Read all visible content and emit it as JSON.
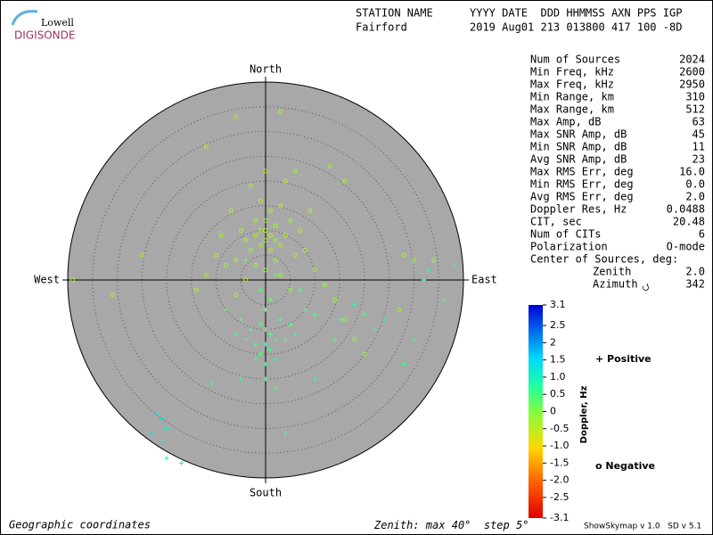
{
  "header": {
    "station_label": "STATION NAME",
    "fields_label": "YYYY DATE  DDD HHMMSS AXN PPS IGP",
    "station": "Fairford",
    "fields": "2019 Aug01 213 013800 417 100 -8D"
  },
  "logo": {
    "top": "Lowell",
    "bottom": "DIGISONDE"
  },
  "stats": {
    "rows": [
      [
        "Num of Sources",
        "2024"
      ],
      [
        "Min Freq, kHz",
        "2600"
      ],
      [
        "Max Freq, kHz",
        "2950"
      ],
      [
        "Min Range, km",
        "310"
      ],
      [
        "Max Range, km",
        "512"
      ],
      [
        "Max Amp, dB",
        "63"
      ],
      [
        "Max SNR Amp, dB",
        "45"
      ],
      [
        "Min SNR Amp, dB",
        "11"
      ],
      [
        "Avg SNR Amp, dB",
        "23"
      ],
      [
        "Max RMS Err, deg",
        "16.0"
      ],
      [
        "Min RMS Err, deg",
        "0.0"
      ],
      [
        "Avg RMS Err, deg",
        "2.0"
      ],
      [
        "Doppler Res, Hz",
        "0.0488"
      ],
      [
        "CIT, sec",
        "20.48"
      ],
      [
        "Num of CITs",
        "6"
      ],
      [
        "Polarization",
        "O-mode"
      ]
    ],
    "center_title": "Center of Sources, deg:",
    "center_rows": [
      [
        "Zenith",
        "2.0"
      ],
      [
        "Azimuth",
        "342"
      ]
    ]
  },
  "footer": {
    "left": "Geographic coordinates",
    "version": "ShowSkymap v 1.0   SD v 5.1"
  },
  "chart_data": {
    "type": "skymap",
    "directions": {
      "north": "North",
      "south": "South",
      "east": "East",
      "west": "West"
    },
    "zenith_label": "Zenith: max",
    "step_label": "step",
    "zenith_max": {
      "value": 40,
      "label": "40°"
    },
    "zenith_step": {
      "value": 5,
      "label": "5°"
    },
    "colorbar": {
      "label": "Doppler, Hz",
      "lim": [
        -3.1,
        3.1
      ],
      "ticks": [
        3.1,
        2.5,
        2,
        1.5,
        {
          "value": 1,
          "label": "1.0"
        },
        0.5,
        0,
        -0.5,
        {
          "value": -1,
          "label": "-1.0"
        },
        -1.5,
        {
          "value": -2,
          "label": "-2.0"
        },
        -2.5,
        -3.1
      ]
    },
    "series": [
      {
        "name": "Positive",
        "marker": "plus",
        "color": "#0000cc",
        "x": [
          0,
          1,
          -1,
          2,
          -2,
          0,
          3,
          -3,
          1,
          -1,
          4,
          -4,
          2,
          -2,
          0,
          1,
          -1,
          5,
          -5,
          6,
          -6,
          0,
          0,
          2,
          -5,
          8,
          10,
          15,
          18,
          20,
          22,
          24,
          30,
          28,
          36,
          33,
          32,
          38,
          -22,
          -21,
          -20,
          -23,
          -21,
          -20,
          -17,
          -11,
          4,
          10,
          14,
          -8,
          7,
          -4,
          2
        ],
        "y": [
          -10,
          -11,
          -9,
          -12,
          -13,
          -13,
          -8,
          -10,
          -14,
          -15,
          -12,
          -12,
          -16,
          -16,
          -6,
          -4,
          -2,
          -9,
          -8,
          -11,
          -11,
          -17,
          -20,
          -22,
          -20,
          -6,
          -7,
          -8,
          -5,
          -7,
          -10,
          -8,
          -12,
          -17,
          -4,
          2,
          0,
          3,
          -27,
          -28,
          -30,
          -31,
          -33,
          -36,
          -37,
          -21,
          -31,
          -20,
          -12,
          -6,
          -2,
          4,
          1
        ],
        "doppler": [
          0.4,
          0.5,
          0.3,
          0.6,
          0.4,
          0.7,
          0.3,
          0.5,
          0.6,
          0.4,
          0.5,
          0.6,
          0.8,
          0.5,
          0.3,
          0.2,
          0.3,
          0.5,
          0.4,
          0.6,
          0.5,
          0.7,
          0.6,
          0.5,
          0.6,
          0.4,
          0.5,
          0.6,
          0.7,
          0.5,
          0.6,
          0.8,
          0.6,
          0.7,
          0.5,
          0.6,
          0.7,
          0.6,
          1.3,
          1.2,
          1.1,
          1.3,
          1.2,
          1.0,
          1.1,
          0.6,
          0.5,
          0.6,
          0.4,
          0.3,
          0.3,
          0.2,
          0.3
        ]
      },
      {
        "name": "Negative",
        "marker": "circle",
        "color": "#cc0000",
        "x": [
          0,
          1,
          -1,
          2,
          -2,
          0,
          1,
          -1,
          3,
          -3,
          2,
          -2,
          0,
          4,
          -4,
          1,
          -1,
          5,
          -5,
          3,
          -6,
          6,
          -8,
          8,
          -10,
          10,
          -12,
          12,
          -14,
          4,
          -3,
          0,
          6,
          -7,
          -9,
          7,
          9,
          2,
          -2,
          0,
          3,
          -4,
          5,
          -6,
          14,
          16,
          28,
          30,
          34,
          27,
          18,
          20,
          -25,
          -39,
          -31,
          -6,
          3,
          -12,
          13,
          16
        ],
        "y": [
          8,
          9,
          7,
          8,
          9,
          10,
          6,
          10,
          7,
          6,
          11,
          12,
          12,
          9,
          8,
          14,
          16,
          12,
          10,
          15,
          4,
          5,
          3,
          6,
          5,
          2,
          1,
          -1,
          -2,
          20,
          19,
          22,
          22,
          14,
          9,
          10,
          14,
          4,
          3,
          2,
          1,
          0,
          -2,
          -3,
          -4,
          -8,
          5,
          4,
          4,
          -6,
          -12,
          -15,
          5,
          0,
          -3,
          33,
          34,
          27,
          23,
          20
        ],
        "doppler": [
          -0.3,
          -0.4,
          -0.3,
          -0.2,
          -0.4,
          -0.3,
          -0.5,
          -0.3,
          -0.4,
          -0.2,
          -0.3,
          -0.4,
          -0.3,
          -0.5,
          -0.3,
          -0.4,
          -0.3,
          -0.2,
          -0.4,
          -0.3,
          -0.3,
          -0.4,
          -0.2,
          -0.3,
          -0.4,
          -0.2,
          -0.3,
          -0.2,
          -0.3,
          -0.4,
          -0.3,
          -0.5,
          -0.3,
          -0.4,
          -0.3,
          -0.2,
          -0.3,
          -0.2,
          -0.3,
          -0.2,
          -0.3,
          -0.2,
          -0.1,
          -0.2,
          -0.3,
          -0.2,
          -0.3,
          -0.2,
          -0.1,
          -0.2,
          -0.3,
          -0.2,
          -0.4,
          -0.2,
          -0.3,
          -0.4,
          -0.3,
          -0.3,
          -0.2,
          -0.3
        ]
      }
    ]
  }
}
